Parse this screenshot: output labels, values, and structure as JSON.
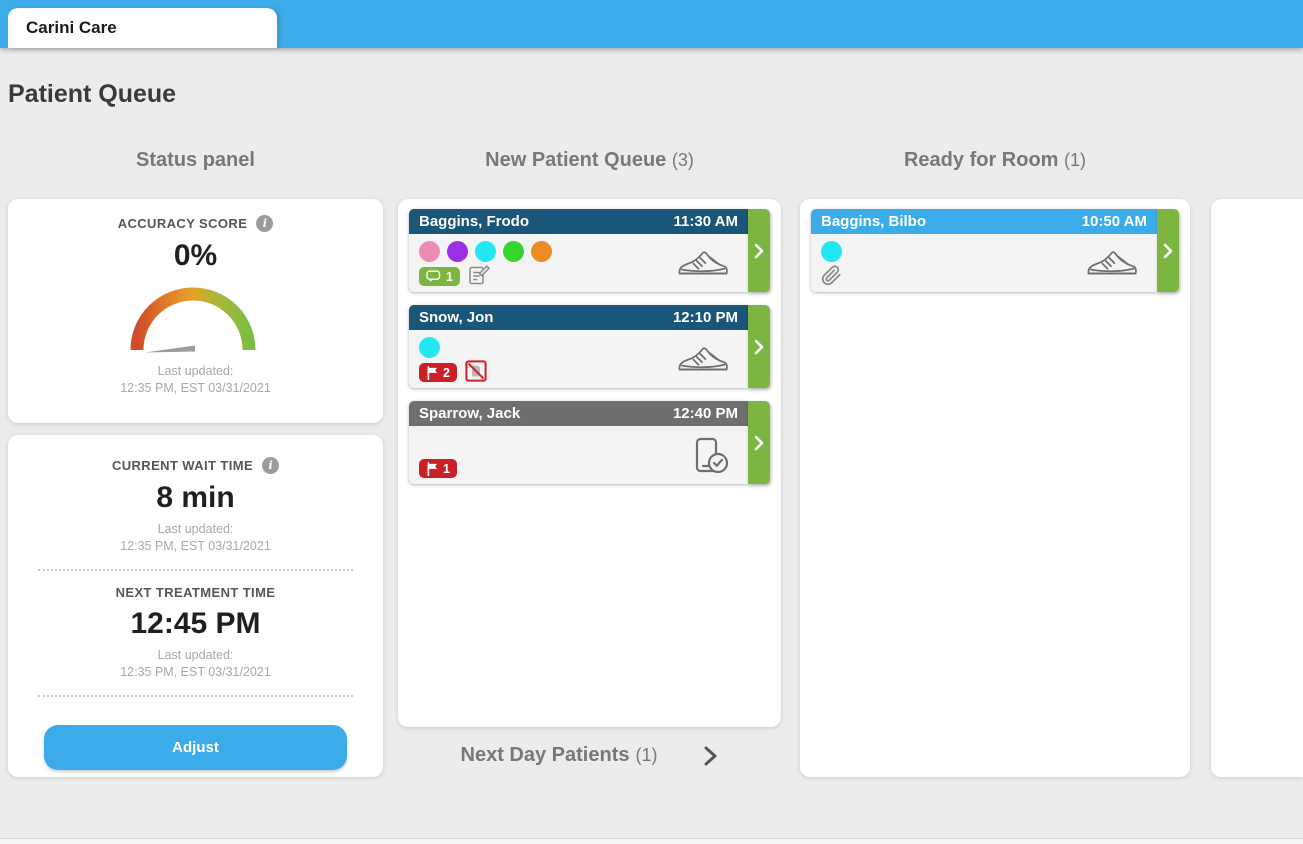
{
  "colors": {
    "accent": "#3BACE9",
    "green": "#7CB53F",
    "red": "#C92127",
    "header_dark_blue": "#1A5679",
    "header_gray": "#6F6F6F",
    "header_light_blue": "#3BACE9"
  },
  "tab": {
    "title": "Carini Care"
  },
  "page": {
    "title": "Patient Queue"
  },
  "status_panel": {
    "title": "Status panel",
    "accuracy": {
      "label": "ACCURACY SCORE",
      "value": "0%",
      "gauge_percent": 0,
      "last_updated_label": "Last updated:",
      "last_updated": "12:35 PM, EST 03/31/2021"
    },
    "wait_time": {
      "label": "CURRENT WAIT TIME",
      "value": "8 min",
      "last_updated_label": "Last updated:",
      "last_updated": "12:35 PM, EST 03/31/2021"
    },
    "next_treatment": {
      "label": "NEXT TREATMENT TIME",
      "value": "12:45 PM",
      "last_updated_label": "Last updated:",
      "last_updated": "12:35 PM, EST 03/31/2021"
    },
    "adjust_label": "Adjust"
  },
  "queues": {
    "new_patient": {
      "title": "New Patient Queue",
      "count": "(3)",
      "patients": [
        {
          "name": "Baggins, Frodo",
          "time": "11:30 AM",
          "header_color": "#1A5679",
          "dots": [
            "#EE8DB4",
            "#9C2FE3",
            "#22E7F2",
            "#35D42F",
            "#EC8C25"
          ],
          "badges": [
            {
              "icon": "comment-icon",
              "count": "1"
            },
            {
              "icon": "note-icon"
            }
          ],
          "status_icon": "sneaker-icon"
        },
        {
          "name": "Snow, Jon",
          "time": "12:10 PM",
          "header_color": "#1A5679",
          "dots": [
            "#22E7F2"
          ],
          "badges": [
            {
              "icon": "flag-icon",
              "count": "2"
            },
            {
              "icon": "no-document-icon"
            }
          ],
          "status_icon": "sneaker-icon"
        },
        {
          "name": "Sparrow, Jack",
          "time": "12:40 PM",
          "header_color": "#6F6F6F",
          "dots": [],
          "badges": [
            {
              "icon": "flag-icon",
              "count": "1"
            }
          ],
          "status_icon": "phone-check-icon"
        }
      ]
    },
    "ready_for_room": {
      "title": "Ready for Room",
      "count": "(1)",
      "patients": [
        {
          "name": "Baggins, Bilbo",
          "time": "10:50 AM",
          "header_color": "#3BACE9",
          "dots": [
            "#22E7F2"
          ],
          "badges": [
            {
              "icon": "paperclip-icon"
            }
          ],
          "status_icon": "sneaker-icon"
        }
      ]
    }
  },
  "next_day": {
    "label": "Next Day Patients",
    "count": "(1)"
  }
}
